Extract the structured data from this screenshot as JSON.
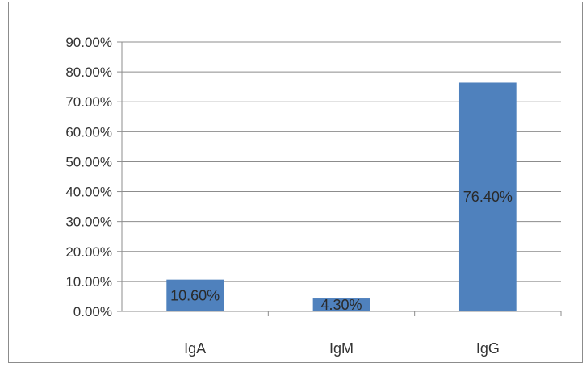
{
  "chart_data": {
    "type": "bar",
    "categories": [
      "IgA",
      "IgM",
      "IgG"
    ],
    "values": [
      10.6,
      4.3,
      76.4
    ],
    "data_labels": [
      "10.60%",
      "4.30%",
      "76.40%"
    ],
    "yticks": [
      "0.00%",
      "10.00%",
      "20.00%",
      "30.00%",
      "40.00%",
      "50.00%",
      "60.00%",
      "70.00%",
      "80.00%",
      "90.00%"
    ],
    "ylim": [
      0,
      90
    ],
    "grid": true,
    "legend": "none",
    "bar_color": "#4f81bd",
    "grid_color": "#8c8c8c"
  }
}
